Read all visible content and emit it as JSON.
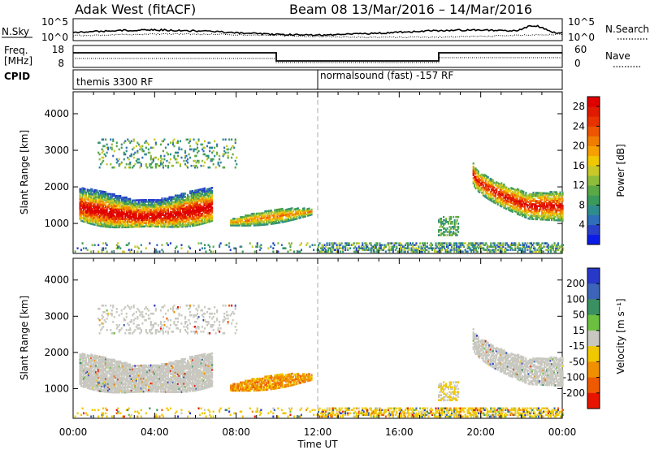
{
  "header": {
    "title": "Adak West (fitACF)",
    "subtitle": "Beam 08  13/Mar/2016 – 14/Mar/2016"
  },
  "strips": {
    "nsky_label": "N.Sky",
    "nsky_ticks": [
      "10^5",
      "10^0"
    ],
    "nsearch_label": "N.Search",
    "nsearch_ticks": [
      "10^5",
      "10^0"
    ],
    "freq_label": "Freq.",
    "freq_unit": "[MHz]",
    "freq_ticks": [
      "18",
      "8"
    ],
    "nave_label": "Nave",
    "nave_ticks": [
      "60",
      "0"
    ],
    "cpid_label": "CPID",
    "cpid_segments": [
      "themis 3300 RF",
      "normalsound (fast) -157 RF"
    ]
  },
  "chart_data": [
    {
      "type": "heatmap",
      "panel": "power",
      "ylabel": "Slant Range [km]",
      "xlabel": "Time UT",
      "x_ticks": [
        "00:00",
        "04:00",
        "08:00",
        "12:00",
        "16:00",
        "20:00",
        "00:00"
      ],
      "xlim_hours": [
        0,
        24
      ],
      "ylim_km": [
        180,
        4600
      ],
      "y_ticks": [
        1000,
        2000,
        3000,
        4000
      ],
      "colorbar": {
        "label": "Power [dB]",
        "ticks": [
          4,
          8,
          12,
          16,
          20,
          24,
          28
        ],
        "range": [
          0,
          30
        ],
        "colors": [
          "#0a1ce6",
          "#2a40c8",
          "#2f6eb8",
          "#2f8c8c",
          "#3a9a5a",
          "#5aa846",
          "#8dbd3a",
          "#c8c828",
          "#f0c800",
          "#f5a000",
          "#f07d00",
          "#ee5500",
          "#e83200",
          "#e01a00",
          "#e00000"
        ]
      },
      "features": [
        {
          "region": "main band",
          "t_start": 0.3,
          "t_end": 6.8,
          "range_km": [
            1000,
            2100
          ],
          "power_db": [
            8,
            30
          ]
        },
        {
          "region": "upper scatter",
          "t_start": 1.2,
          "t_end": 8.0,
          "range_km": [
            2500,
            3300
          ],
          "power_db": [
            4,
            16
          ]
        },
        {
          "region": "oblique patch",
          "t_start": 7.7,
          "t_end": 11.7,
          "range_km": [
            900,
            1450
          ],
          "power_db": [
            6,
            22
          ]
        },
        {
          "region": "evening band",
          "t_start": 19.6,
          "t_end": 24.0,
          "range_km": [
            1300,
            2400
          ],
          "power_db": [
            6,
            28
          ]
        }
      ]
    },
    {
      "type": "heatmap",
      "panel": "velocity",
      "ylabel": "Slant Range [km]",
      "xlabel": "Time UT",
      "x_ticks": [
        "00:00",
        "04:00",
        "08:00",
        "12:00",
        "16:00",
        "20:00",
        "00:00"
      ],
      "xlim_hours": [
        0,
        24
      ],
      "ylim_km": [
        180,
        4600
      ],
      "y_ticks": [
        1000,
        2000,
        3000,
        4000
      ],
      "colorbar": {
        "label": "Velocity [m s⁻¹]",
        "ticks": [
          200,
          100,
          50,
          15,
          -15,
          -50,
          -100,
          -200
        ],
        "colors": [
          "#2838c8",
          "#3c64b8",
          "#3a9060",
          "#6cc040",
          "#c8c8c0",
          "#f0c800",
          "#f09000",
          "#ee5a00",
          "#e81400"
        ]
      },
      "features": [
        {
          "region": "main band",
          "t_start": 0.3,
          "t_end": 6.8,
          "range_km": [
            1000,
            2100
          ],
          "velocity": "~0 (ground scatter)"
        },
        {
          "region": "oblique patch",
          "t_start": 7.7,
          "t_end": 11.7,
          "range_km": [
            900,
            1450
          ],
          "velocity_ms": [
            -80,
            -30
          ]
        },
        {
          "region": "evening band",
          "t_start": 19.6,
          "t_end": 24.0,
          "range_km": [
            1300,
            2400
          ],
          "velocity": "~0 (ground scatter)"
        }
      ]
    }
  ]
}
